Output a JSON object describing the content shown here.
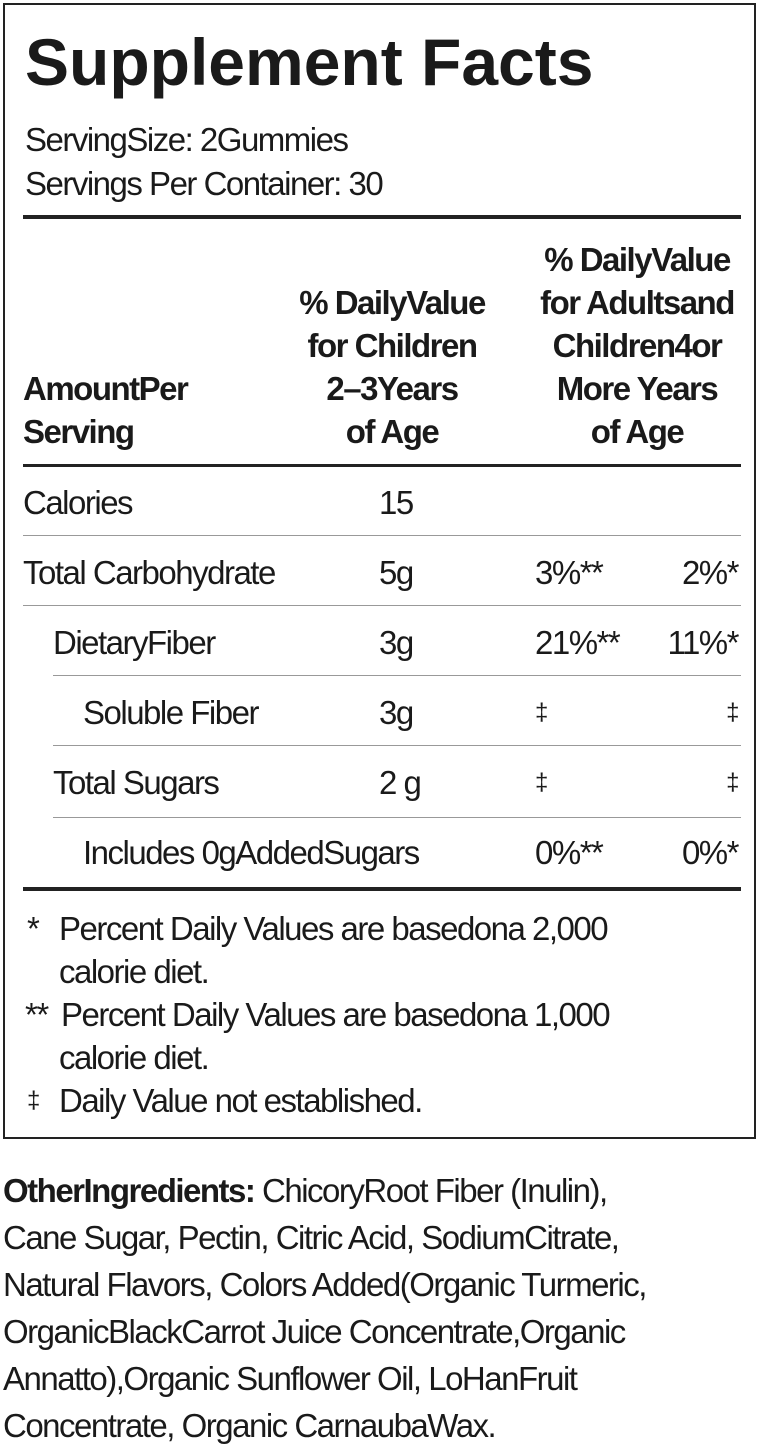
{
  "title": "Supplement Facts",
  "serving_size": "ServingSize:   2Gummies",
  "servings_per_container": "Servings Per  Container: 30",
  "header": {
    "amount_per_serving_line1": "AmountPer",
    "amount_per_serving_line2": "Serving",
    "children_dv": [
      "% DailyValue",
      "for Children",
      "2–3Years",
      "of Age"
    ],
    "adults_dv": [
      "% DailyValue",
      "for Adultsand",
      "Children4or",
      "More Years",
      "of Age"
    ]
  },
  "rows": [
    {
      "name": "Calories",
      "amount": "15",
      "dv_children": "",
      "dv_adults": ""
    },
    {
      "name": "Total Carbohydrate",
      "amount": "5g",
      "dv_children": "3%**",
      "dv_adults": "2%*"
    },
    {
      "name": "DietaryFiber",
      "amount": "3g",
      "dv_children": "21%**",
      "dv_adults": "11%*"
    },
    {
      "name": "Soluble Fiber",
      "amount": "3g",
      "dv_children": "‡",
      "dv_adults": "‡"
    },
    {
      "name": "Total Sugars",
      "amount": "2 g",
      "dv_children": "‡",
      "dv_adults": "‡"
    },
    {
      "name": "Includes 0gAddedSugars",
      "amount": "",
      "dv_children": "0%**",
      "dv_adults": "0%*"
    }
  ],
  "footnotes": {
    "f1_mark": "*",
    "f1_line1": "Percent  Daily Values are  basedona  2,000",
    "f1_line2": "calorie diet.",
    "f2_mark": "**",
    "f2_line1": "Percent Daily Values are basedona  1,000",
    "f2_line2": "calorie diet.",
    "f3_mark": "‡",
    "f3_line1": "Daily Value not established."
  },
  "other_ingredients": {
    "label": "OtherIngredients:",
    "lines": [
      " ChicoryRoot Fiber (Inulin),",
      "Cane Sugar, Pectin, Citric Acid, SodiumCitrate,",
      "Natural Flavors, Colors Added(Organic Turmeric,",
      "OrganicBlackCarrot  Juice  Concentrate,Organic",
      "Annatto),Organic Sunflower Oil, LoHanFruit",
      "Concentrate, Organic CarnaubaWax."
    ]
  }
}
